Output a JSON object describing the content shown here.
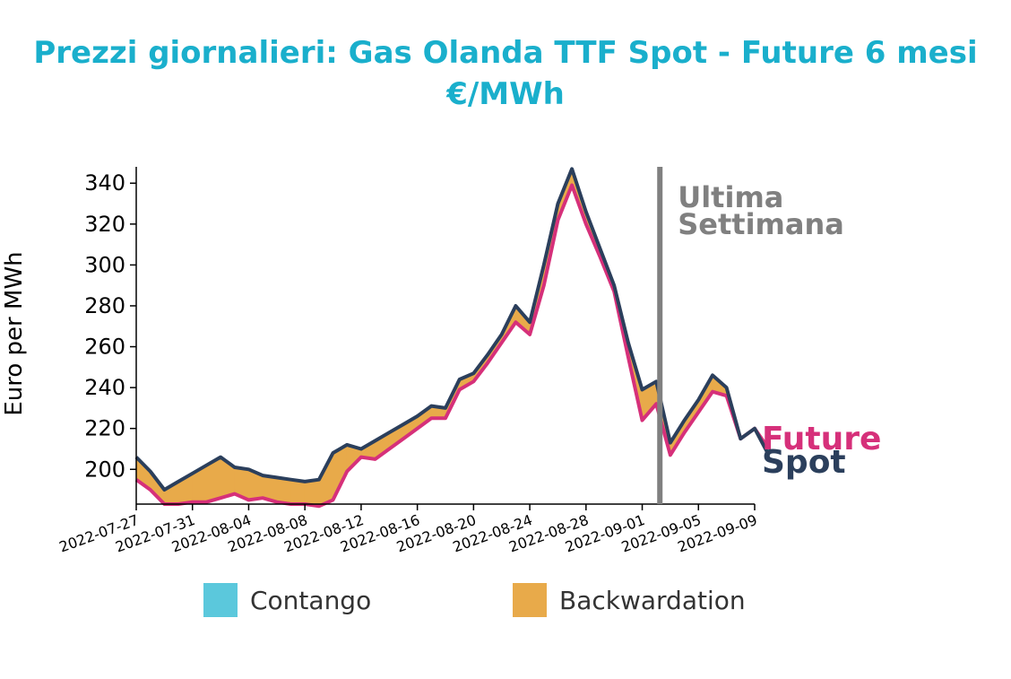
{
  "title": {
    "line1": "Prezzi giornalieri: Gas Olanda TTF Spot - Future 6 mesi",
    "line2": "€/MWh"
  },
  "colors": {
    "title": "#1aafcc",
    "spot": "#2b3f5c",
    "future": "#d6307a",
    "backwardation": "#e8aa4a",
    "contango": "#5bc8dc",
    "annotation": "#808080"
  },
  "legend": {
    "contango": "Contango",
    "backwardation": "Backwardation"
  },
  "chart_data": {
    "type": "area",
    "ylabel": "Euro per MWh",
    "ylim": [
      183,
      348
    ],
    "yticks": [
      200,
      220,
      240,
      260,
      280,
      300,
      320,
      340
    ],
    "xlim": [
      "2022-07-27",
      "2022-09-09"
    ],
    "xticks": [
      "2022-07-27",
      "2022-07-31",
      "2022-08-04",
      "2022-08-08",
      "2022-08-12",
      "2022-08-16",
      "2022-08-20",
      "2022-08-24",
      "2022-08-28",
      "2022-09-01",
      "2022-09-05",
      "2022-09-09"
    ],
    "grid": false,
    "legend_position": "bottom",
    "annotation": {
      "date": "2022-09-02",
      "line1": "Ultima",
      "line2": "Settimana"
    },
    "end_labels": {
      "future": "Future",
      "spot": "Spot"
    },
    "series": [
      {
        "name": "Spot",
        "points": [
          [
            "2022-07-27",
            206
          ],
          [
            "2022-07-28",
            199
          ],
          [
            "2022-07-29",
            190
          ],
          [
            "2022-07-30",
            194
          ],
          [
            "2022-07-31",
            198
          ],
          [
            "2022-08-01",
            202
          ],
          [
            "2022-08-02",
            206
          ],
          [
            "2022-08-03",
            201
          ],
          [
            "2022-08-04",
            200
          ],
          [
            "2022-08-05",
            197
          ],
          [
            "2022-08-06",
            196
          ],
          [
            "2022-08-07",
            195
          ],
          [
            "2022-08-08",
            194
          ],
          [
            "2022-08-09",
            195
          ],
          [
            "2022-08-10",
            208
          ],
          [
            "2022-08-11",
            212
          ],
          [
            "2022-08-12",
            210
          ],
          [
            "2022-08-13",
            214
          ],
          [
            "2022-08-14",
            218
          ],
          [
            "2022-08-15",
            222
          ],
          [
            "2022-08-16",
            226
          ],
          [
            "2022-08-17",
            231
          ],
          [
            "2022-08-18",
            230
          ],
          [
            "2022-08-19",
            244
          ],
          [
            "2022-08-20",
            247
          ],
          [
            "2022-08-21",
            256
          ],
          [
            "2022-08-22",
            266
          ],
          [
            "2022-08-23",
            280
          ],
          [
            "2022-08-24",
            272
          ],
          [
            "2022-08-25",
            300
          ],
          [
            "2022-08-26",
            330
          ],
          [
            "2022-08-27",
            347
          ],
          [
            "2022-08-28",
            326
          ],
          [
            "2022-08-29",
            308
          ],
          [
            "2022-08-30",
            290
          ],
          [
            "2022-08-31",
            262
          ],
          [
            "2022-09-01",
            239
          ],
          [
            "2022-09-02",
            243
          ],
          [
            "2022-09-03",
            213
          ],
          [
            "2022-09-04",
            224
          ],
          [
            "2022-09-05",
            234
          ],
          [
            "2022-09-06",
            246
          ],
          [
            "2022-09-07",
            240
          ],
          [
            "2022-09-08",
            215
          ],
          [
            "2022-09-09",
            220
          ],
          [
            "2022-09-10",
            207
          ]
        ]
      },
      {
        "name": "Future",
        "points": [
          [
            "2022-07-27",
            195
          ],
          [
            "2022-07-28",
            190
          ],
          [
            "2022-07-29",
            183
          ],
          [
            "2022-07-30",
            183
          ],
          [
            "2022-07-31",
            184
          ],
          [
            "2022-08-01",
            184
          ],
          [
            "2022-08-02",
            186
          ],
          [
            "2022-08-03",
            188
          ],
          [
            "2022-08-04",
            185
          ],
          [
            "2022-08-05",
            186
          ],
          [
            "2022-08-06",
            184
          ],
          [
            "2022-08-07",
            183
          ],
          [
            "2022-08-08",
            183
          ],
          [
            "2022-08-09",
            182
          ],
          [
            "2022-08-10",
            185
          ],
          [
            "2022-08-11",
            199
          ],
          [
            "2022-08-12",
            206
          ],
          [
            "2022-08-13",
            205
          ],
          [
            "2022-08-14",
            210
          ],
          [
            "2022-08-15",
            215
          ],
          [
            "2022-08-16",
            220
          ],
          [
            "2022-08-17",
            225
          ],
          [
            "2022-08-18",
            225
          ],
          [
            "2022-08-19",
            239
          ],
          [
            "2022-08-20",
            243
          ],
          [
            "2022-08-21",
            252
          ],
          [
            "2022-08-22",
            262
          ],
          [
            "2022-08-23",
            272
          ],
          [
            "2022-08-24",
            266
          ],
          [
            "2022-08-25",
            290
          ],
          [
            "2022-08-26",
            322
          ],
          [
            "2022-08-27",
            339
          ],
          [
            "2022-08-28",
            320
          ],
          [
            "2022-08-29",
            304
          ],
          [
            "2022-08-30",
            287
          ],
          [
            "2022-08-31",
            255
          ],
          [
            "2022-09-01",
            224
          ],
          [
            "2022-09-02",
            232
          ],
          [
            "2022-09-03",
            207
          ],
          [
            "2022-09-04",
            218
          ],
          [
            "2022-09-05",
            228
          ],
          [
            "2022-09-06",
            238
          ],
          [
            "2022-09-07",
            236
          ],
          [
            "2022-09-08",
            215
          ],
          [
            "2022-09-09",
            220
          ],
          [
            "2022-09-10",
            210
          ]
        ]
      }
    ]
  }
}
